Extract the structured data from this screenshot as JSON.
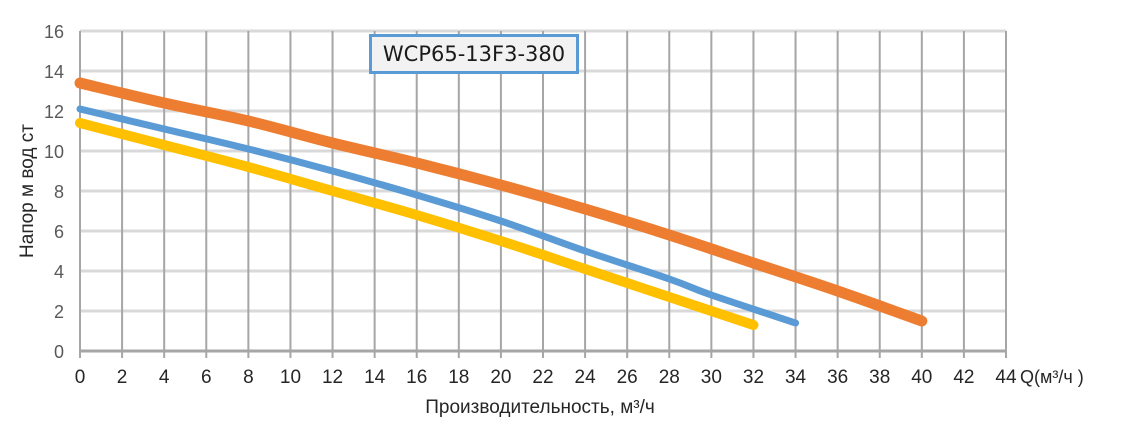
{
  "chart_data": {
    "type": "line",
    "title": "WCP65-13F3-380",
    "xlabel": "Производительность, м³/ч",
    "x_unit_label": "Q(м³/ч )",
    "ylabel": "Напор м вод ст",
    "xlim": [
      0,
      44
    ],
    "ylim": [
      0,
      16
    ],
    "x_ticks": [
      0,
      2,
      4,
      6,
      8,
      10,
      12,
      14,
      16,
      18,
      20,
      22,
      24,
      26,
      28,
      30,
      32,
      34,
      36,
      38,
      40,
      42,
      44
    ],
    "y_ticks": [
      0,
      2,
      4,
      6,
      8,
      10,
      12,
      14,
      16
    ],
    "grid": true,
    "legend": null,
    "series": [
      {
        "name": "orange",
        "color": "#ed7d31",
        "x": [
          0,
          4,
          8,
          12,
          16,
          20,
          24,
          28,
          32,
          36,
          40
        ],
        "y": [
          13.4,
          12.4,
          11.5,
          10.4,
          9.4,
          8.3,
          7.1,
          5.8,
          4.4,
          3.0,
          1.5
        ]
      },
      {
        "name": "blue",
        "color": "#5b9bd5",
        "x": [
          0,
          4,
          8,
          12,
          16,
          20,
          24,
          28,
          30,
          34
        ],
        "y": [
          12.1,
          11.1,
          10.1,
          9.0,
          7.8,
          6.5,
          5.0,
          3.6,
          2.8,
          1.4
        ]
      },
      {
        "name": "yellow",
        "color": "#ffc000",
        "x": [
          0,
          4,
          8,
          12,
          16,
          20,
          24,
          28,
          32
        ],
        "y": [
          11.4,
          10.3,
          9.2,
          8.0,
          6.8,
          5.5,
          4.1,
          2.7,
          1.3
        ]
      }
    ]
  }
}
